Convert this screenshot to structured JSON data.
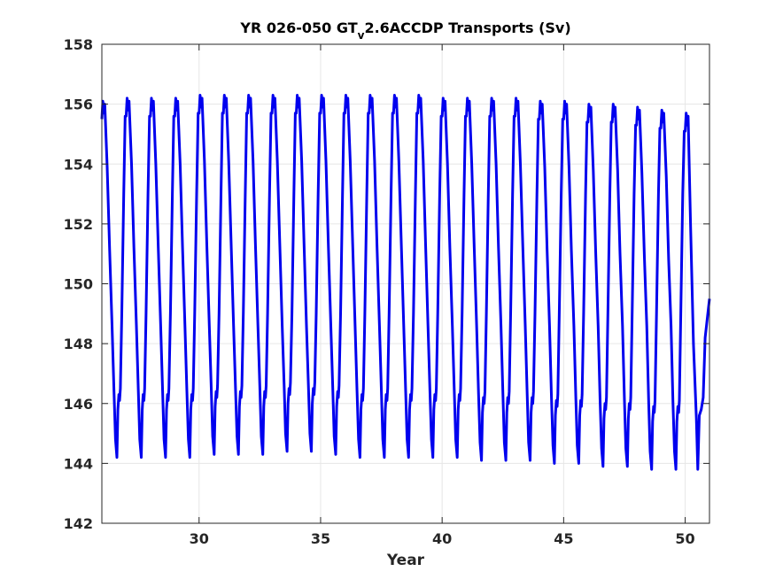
{
  "chart_data": {
    "type": "line",
    "title_parts": {
      "before": "YR 026-050 GT",
      "subscript": "v",
      "after": "2.6ACCDP Transports (Sv)"
    },
    "xlabel": "Year",
    "ylabel": "",
    "xlim": [
      26,
      51
    ],
    "ylim": [
      142,
      158
    ],
    "xticks": [
      30,
      35,
      40,
      45,
      50
    ],
    "yticks": [
      142,
      144,
      146,
      148,
      150,
      152,
      154,
      156,
      158
    ],
    "grid": true,
    "line_color": "#0000ee",
    "grid_color": "#e6e6e6",
    "axis_color": "#262626",
    "x_start": 26.0,
    "x_end": 51.0,
    "period_years": 1.0,
    "max_cycle": [
      156.1,
      156.2,
      156.2,
      156.2,
      156.3,
      156.3,
      156.3,
      156.3,
      156.3,
      156.3,
      156.3,
      156.3,
      156.3,
      156.3,
      156.2,
      156.2,
      156.2,
      156.2,
      156.1,
      156.1,
      156.0,
      156.0,
      155.9,
      155.8,
      155.7
    ],
    "min_cycle": [
      144.2,
      144.2,
      144.2,
      144.2,
      144.3,
      144.3,
      144.3,
      144.4,
      144.4,
      144.3,
      144.2,
      144.2,
      144.2,
      144.2,
      144.2,
      144.1,
      144.1,
      144.1,
      144.0,
      144.0,
      143.9,
      143.9,
      143.8,
      143.8
    ],
    "final_value": 149.5
  }
}
